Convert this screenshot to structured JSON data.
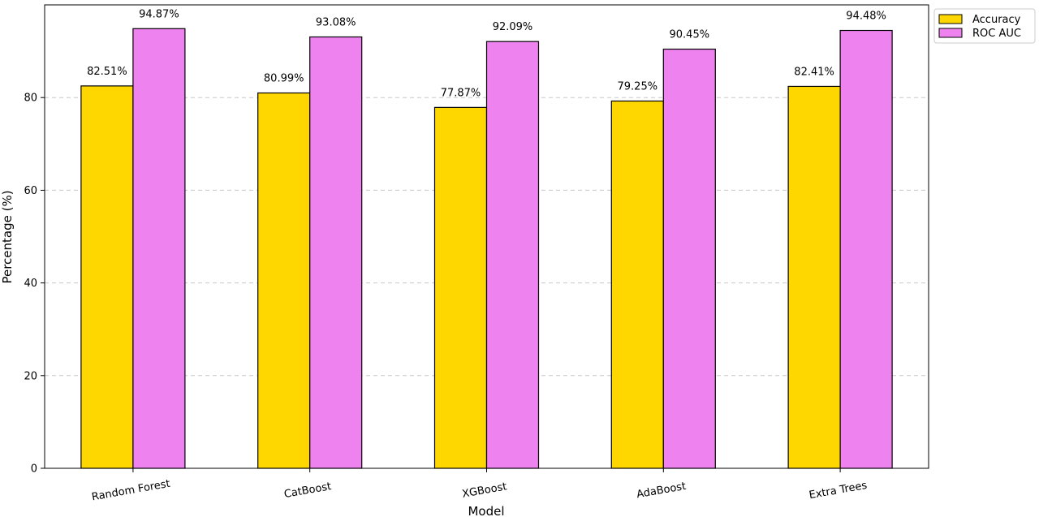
{
  "chart_data": {
    "type": "bar",
    "categories": [
      "Random Forest",
      "CatBoost",
      "XGBoost",
      "AdaBoost",
      "Extra Trees"
    ],
    "series": [
      {
        "name": "Accuracy",
        "values": [
          82.51,
          80.99,
          77.87,
          79.25,
          82.41
        ],
        "labels": [
          "82.51%",
          "80.99%",
          "77.87%",
          "79.25%",
          "82.41%"
        ],
        "color": "#FFD700"
      },
      {
        "name": "ROC AUC",
        "values": [
          94.87,
          93.08,
          92.09,
          90.45,
          94.48
        ],
        "labels": [
          "94.87%",
          "93.08%",
          "92.09%",
          "90.45%",
          "94.48%"
        ],
        "color": "#EE82EE"
      }
    ],
    "xlabel": "Model",
    "ylabel": "Percentage (%)",
    "ylim": [
      0,
      100
    ],
    "yticks": [
      0,
      20,
      40,
      60,
      80
    ],
    "grid": "horizontal dashed",
    "legend": "top-right, outside plot area"
  }
}
